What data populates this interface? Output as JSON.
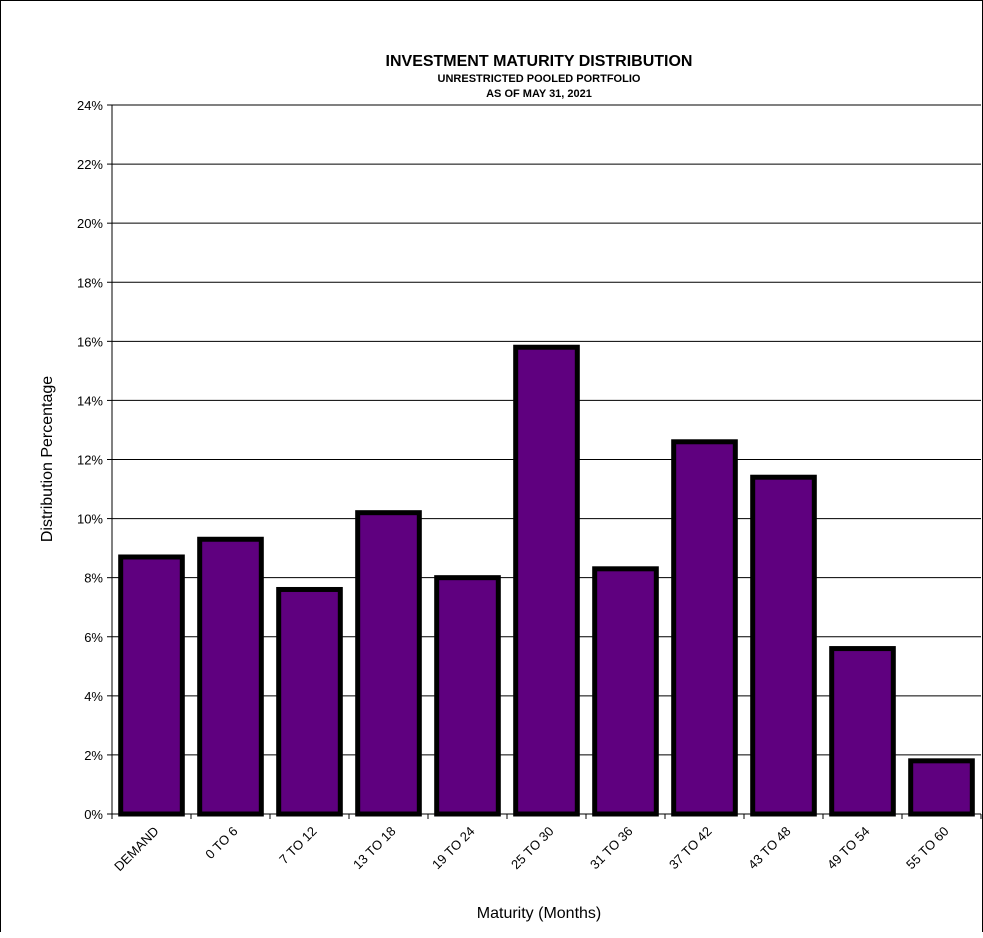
{
  "chart_data": {
    "type": "bar",
    "title": "INVESTMENT MATURITY DISTRIBUTION",
    "subtitle_lines": [
      "UNRESTRICTED POOLED PORTFOLIO",
      "AS OF MAY 31, 2021"
    ],
    "xlabel": "Maturity (Months)",
    "ylabel": "Distribution  Percentage",
    "ylim": [
      0,
      24
    ],
    "y_ticks": [
      0,
      2,
      4,
      6,
      8,
      10,
      12,
      14,
      16,
      18,
      20,
      22,
      24
    ],
    "y_tick_labels": [
      "0%",
      "2%",
      "4%",
      "6%",
      "8%",
      "10%",
      "12%",
      "14%",
      "16%",
      "18%",
      "20%",
      "22%",
      "24%"
    ],
    "y_unit": "%",
    "grid": "horizontal",
    "categories": [
      "DEMAND",
      "0 TO 6",
      "7 TO 12",
      "13 TO 18",
      "19 TO 24",
      "25 TO 30",
      "31 TO 36",
      "37 TO 42",
      "43 TO 48",
      "49 TO 54",
      "55 TO 60"
    ],
    "values": [
      8.7,
      9.3,
      7.6,
      10.2,
      8.0,
      15.8,
      8.3,
      12.6,
      11.4,
      5.6,
      1.8
    ],
    "bar_color": "#5F007F",
    "bar_edge_color": "#000000"
  }
}
